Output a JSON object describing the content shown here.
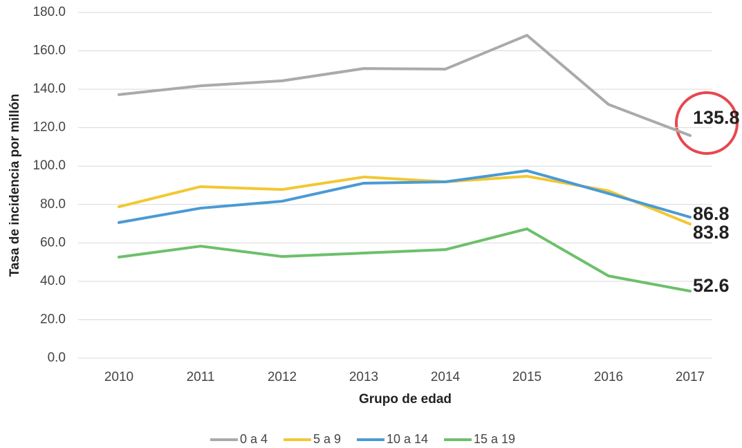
{
  "chart_data": {
    "type": "line",
    "categories": [
      "2010",
      "2011",
      "2012",
      "2013",
      "2014",
      "2015",
      "2016",
      "2017"
    ],
    "series": [
      {
        "name": "0 a 4",
        "color": "#aaaaaa",
        "values": [
          137.2,
          141.8,
          144.4,
          150.8,
          150.5,
          168.1,
          132.1,
          115.9
        ]
      },
      {
        "name": "5 a 9",
        "color": "#f2c832",
        "values": [
          78.8,
          89.3,
          87.8,
          94.3,
          91.8,
          94.7,
          87.1,
          69.8
        ]
      },
      {
        "name": "10 a 14",
        "color": "#4a9ad4",
        "values": [
          70.6,
          78.1,
          81.7,
          91.1,
          91.8,
          97.6,
          85.7,
          73.4
        ]
      },
      {
        "name": "15 a 19",
        "color": "#6cc06a",
        "values": [
          52.6,
          58.3,
          52.9,
          54.7,
          56.5,
          67.3,
          42.8,
          34.9
        ]
      }
    ],
    "ylim": [
      0,
      180
    ],
    "yticks": [
      {
        "value": 0,
        "label": "0.0"
      },
      {
        "value": 20,
        "label": "20.0"
      },
      {
        "value": 40,
        "label": "40.0"
      },
      {
        "value": 60,
        "label": "60.0"
      },
      {
        "value": 80,
        "label": "80.0"
      },
      {
        "value": 100,
        "label": "100.0"
      },
      {
        "value": 120,
        "label": "120.0"
      },
      {
        "value": 140,
        "label": "140.0"
      },
      {
        "value": 160,
        "label": "160.0"
      },
      {
        "value": 180,
        "label": "180.0"
      }
    ],
    "ylabel": "Tasa de incidencia por millón",
    "xlabel": "Grupo de edad",
    "annotations": [
      "135.8",
      "86.8",
      "83.8",
      "52.6"
    ],
    "grid": true,
    "legend": "bottom"
  }
}
